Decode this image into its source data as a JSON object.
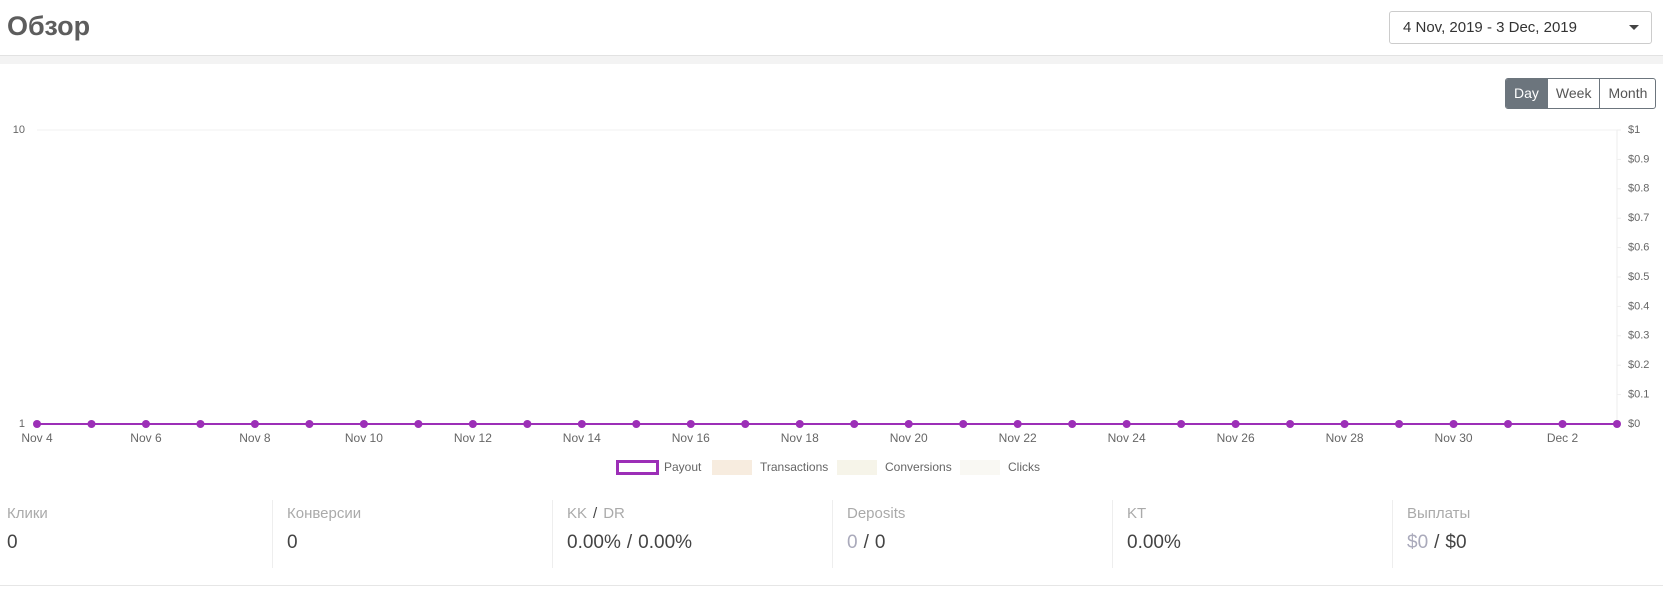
{
  "header": {
    "title": "Обзор",
    "date_range": "4 Nov, 2019 - 3 Dec, 2019"
  },
  "period_buttons": [
    "Day",
    "Week",
    "Month"
  ],
  "chart_data": {
    "type": "line",
    "categories": [
      "Nov 4",
      null,
      "Nov 6",
      null,
      "Nov 8",
      null,
      "Nov 10",
      null,
      "Nov 12",
      null,
      "Nov 14",
      null,
      "Nov 16",
      null,
      "Nov 18",
      null,
      "Nov 20",
      null,
      "Nov 22",
      null,
      "Nov 24",
      null,
      "Nov 26",
      null,
      "Nov 28",
      null,
      "Nov 30",
      null,
      "Dec 2",
      null
    ],
    "ylim": [
      1,
      10
    ],
    "yticks": [
      1,
      10
    ],
    "ylog": true,
    "grid": true,
    "y2lim": [
      0,
      1
    ],
    "y2ticks": [
      {
        "value": 0,
        "label": "$0"
      },
      {
        "value": 0.1,
        "label": "$0.1"
      },
      {
        "value": 0.2,
        "label": "$0.2"
      },
      {
        "value": 0.3,
        "label": "$0.3"
      },
      {
        "value": 0.4,
        "label": "$0.4"
      },
      {
        "value": 0.5,
        "label": "$0.5"
      },
      {
        "value": 0.6,
        "label": "$0.6"
      },
      {
        "value": 0.7,
        "label": "$0.7"
      },
      {
        "value": 0.8,
        "label": "$0.8"
      },
      {
        "value": 0.9,
        "label": "$0.9"
      },
      {
        "value": 1,
        "label": "$1"
      }
    ],
    "legend": "bottom",
    "series": [
      {
        "name": "Payout",
        "color": "#9c2fb7",
        "axis": "y2",
        "values": [
          0,
          0,
          0,
          0,
          0,
          0,
          0,
          0,
          0,
          0,
          0,
          0,
          0,
          0,
          0,
          0,
          0,
          0,
          0,
          0,
          0,
          0,
          0,
          0,
          0,
          0,
          0,
          0,
          0,
          0
        ]
      },
      {
        "name": "Transactions",
        "color": "#f7ecdf",
        "values": [
          null,
          null,
          null,
          null,
          null,
          null,
          null,
          null,
          null,
          null,
          null,
          null,
          null,
          null,
          null,
          null,
          null,
          null,
          null,
          null,
          null,
          null,
          null,
          null,
          null,
          null,
          null,
          null,
          null,
          null
        ]
      },
      {
        "name": "Conversions",
        "color": "#f6f4e9",
        "values": [
          null,
          null,
          null,
          null,
          null,
          null,
          null,
          null,
          null,
          null,
          null,
          null,
          null,
          null,
          null,
          null,
          null,
          null,
          null,
          null,
          null,
          null,
          null,
          null,
          null,
          null,
          null,
          null,
          null,
          null
        ]
      },
      {
        "name": "Clicks",
        "color": "#f9f8f3",
        "values": [
          null,
          null,
          null,
          null,
          null,
          null,
          null,
          null,
          null,
          null,
          null,
          null,
          null,
          null,
          null,
          null,
          null,
          null,
          null,
          null,
          null,
          null,
          null,
          null,
          null,
          null,
          null,
          null,
          null,
          null
        ]
      }
    ]
  },
  "stats": [
    {
      "label": "Клики",
      "value": "0"
    },
    {
      "label": "Конверсии",
      "value": "0"
    },
    {
      "label": [
        "KK",
        "/",
        "DR"
      ],
      "value": [
        "0.00%",
        "/",
        "0.00%"
      ]
    },
    {
      "label": "Deposits",
      "value": [
        "0",
        "/",
        "0"
      ]
    },
    {
      "label": "KT",
      "value": "0.00%"
    },
    {
      "label": "Выплаты",
      "value": [
        "$0",
        "/",
        "$0"
      ]
    }
  ]
}
